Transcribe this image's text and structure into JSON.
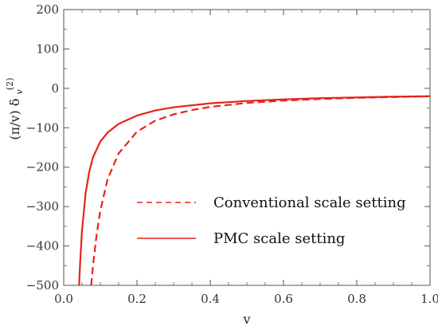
{
  "chart_data": {
    "type": "line",
    "title": "",
    "xlabel": "v",
    "ylabel": {
      "base": "(π/v) δ",
      "subscript": "v",
      "superscript": "(2)"
    },
    "xlim": [
      0.0,
      1.0
    ],
    "ylim": [
      -500,
      200
    ],
    "xticks": [
      "0.0",
      "0.2",
      "0.4",
      "0.6",
      "0.8",
      "1.0"
    ],
    "yticks": [
      "200",
      "100",
      "0",
      "−100",
      "−200",
      "−300",
      "−400",
      "−500"
    ],
    "grid": false,
    "legend_position": "lower-right",
    "line_color": "#e8221c",
    "series": [
      {
        "name": "Conventional scale setting",
        "style": "dashed",
        "x": [
          0.075,
          0.08,
          0.09,
          0.1,
          0.12,
          0.15,
          0.2,
          0.25,
          0.3,
          0.35,
          0.4,
          0.5,
          0.6,
          0.7,
          0.8,
          0.9,
          1.0
        ],
        "y": [
          -500,
          -450,
          -370,
          -310,
          -230,
          -165,
          -110,
          -82,
          -66,
          -55,
          -47,
          -37,
          -31,
          -27,
          -24,
          -22,
          -20
        ]
      },
      {
        "name": "PMC scale setting",
        "style": "solid",
        "x": [
          0.042,
          0.045,
          0.05,
          0.06,
          0.07,
          0.08,
          0.1,
          0.12,
          0.15,
          0.2,
          0.25,
          0.3,
          0.4,
          0.5,
          0.6,
          0.7,
          0.8,
          0.9,
          1.0
        ],
        "y": [
          -500,
          -440,
          -360,
          -265,
          -210,
          -175,
          -135,
          -112,
          -90,
          -69,
          -56,
          -48,
          -38,
          -32,
          -28,
          -25,
          -23,
          -21,
          -20
        ]
      }
    ]
  }
}
